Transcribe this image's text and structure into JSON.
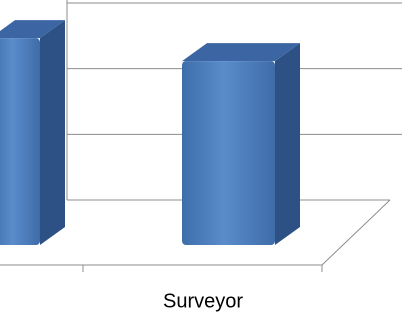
{
  "chart_data": {
    "type": "bar3d",
    "categories": [
      null,
      "Surveyor"
    ],
    "values": [
      3.15,
      2.8
    ],
    "color": "#4f81bd",
    "ylim": [
      0,
      3
    ],
    "yticks": [
      0,
      1,
      2,
      3
    ],
    "grid": true
  }
}
